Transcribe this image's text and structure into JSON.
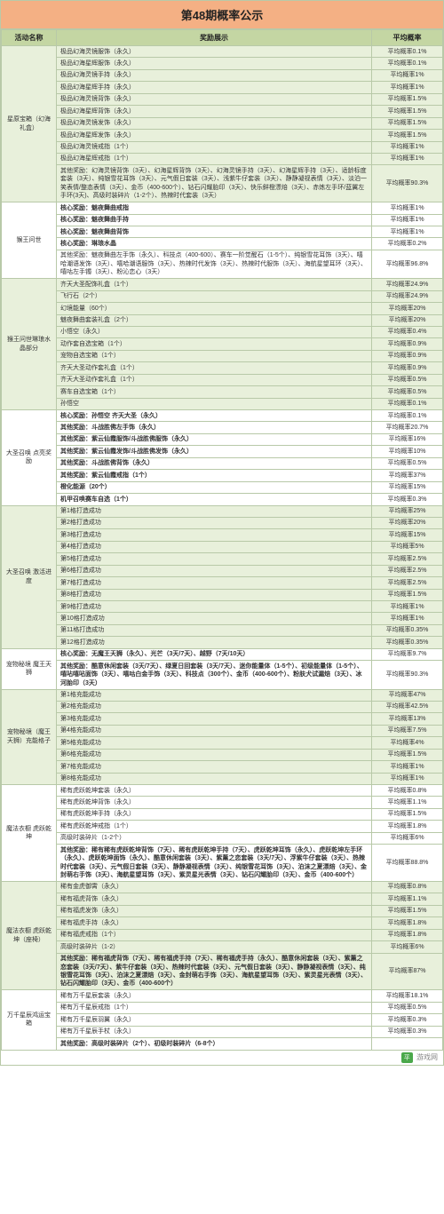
{
  "title": "第48期概率公示",
  "headers": {
    "name": "活动名称",
    "reward": "奖励展示",
    "rate": "平均概率"
  },
  "footer_brand": "平",
  "footer_text": "游戏网",
  "groups": [
    {
      "name": "星原宝箱（幻海礼盒）",
      "rows": [
        {
          "reward": "极品幻海灵镜服饰（永久）",
          "rate": "平均概率0.1%"
        },
        {
          "reward": "极品幻海星辉服饰（永久）",
          "rate": "平均概率0.1%"
        },
        {
          "reward": "极品幻海灵镜手持（永久）",
          "rate": "平均概率1%"
        },
        {
          "reward": "极品幻海星辉手持（永久）",
          "rate": "平均概率1%"
        },
        {
          "reward": "极品幻海灵镜背饰（永久）",
          "rate": "平均概率1.5%"
        },
        {
          "reward": "极品幻海星辉背饰（永久）",
          "rate": "平均概率1.5%"
        },
        {
          "reward": "极品幻海灵镜发饰（永久）",
          "rate": "平均概率1.5%"
        },
        {
          "reward": "极品幻海星辉发饰（永久）",
          "rate": "平均概率1.5%"
        },
        {
          "reward": "极品幻海灵镜戒指（1个）",
          "rate": "平均概率1%"
        },
        {
          "reward": "极品幻海星辉戒指（1个）",
          "rate": "平均概率1%"
        },
        {
          "reward": "其他奖励：幻海灵镜背饰（3天）、幻海星辉背饰（3天）、幻海灵镜手持（3天）、幻海星辉手持（3天）、适龄标度套装（3天）、纯银雪花耳饰（3天）、元气假日套装（3天）、浅紫牛仔套装（3天）、静静凝视表情（3天）、淡泊一笑表情/整态表情（3天）、金币（400-600个）、钻石闪耀胎印（3天）、快乐鲜橙漂焙（3天）、赤炼左手环/蓝翼左手环(3天)、高级时装碎片（1-2个）、热辣时代套装（3天）",
          "rate": "平均概率90.3%"
        }
      ]
    },
    {
      "name": "猴王问世",
      "rows": [
        {
          "reward": "核心奖励：魅夜舞曲戒指",
          "rate": "平均概率1%",
          "bold": true
        },
        {
          "reward": "核心奖励：魅夜舞曲手持",
          "rate": "平均概率1%",
          "bold": true
        },
        {
          "reward": "核心奖励：魅夜舞曲背饰",
          "rate": "平均概率1%",
          "bold": true
        },
        {
          "reward": "核心奖励：琳琅水晶",
          "rate": "平均概率0.2%",
          "bold": true
        },
        {
          "reward": "其他奖励：魅夜舞曲左手饰（永久）、科技点（400-600）、赛车一阶觉醒石（1-5个）、纯银雪花耳饰（3天）、嘻哈潮语发饰（3天）、嘻哈潮语服饰（3天）、热辣时代发饰（3天）、热辣时代服饰（3天）、海航星望耳环（3天）、嘻咕左手镯（3天）、粉沁恋心（3天）",
          "rate": "平均概率96.8%"
        }
      ]
    },
    {
      "name": "猴王问世琳琅水晶部分",
      "rows": [
        {
          "reward": "齐天大圣配饰礼盒（1个）",
          "rate": "平均概率24.9%"
        },
        {
          "reward": "飞行石（2个）",
          "rate": "平均概率24.9%"
        },
        {
          "reward": "幻境能量（60个）",
          "rate": "平均概率20%"
        },
        {
          "reward": "魅夜舞曲套装礼盒（2个）",
          "rate": "平均概率20%"
        },
        {
          "reward": "小悟空（永久）",
          "rate": "平均概率0.4%"
        },
        {
          "reward": "动作套自选宝箱（1个）",
          "rate": "平均概率0.9%"
        },
        {
          "reward": "宠物自选宝箱（1个）",
          "rate": "平均概率0.9%"
        },
        {
          "reward": "齐天大圣动作套礼盒（1个）",
          "rate": "平均概率0.9%"
        },
        {
          "reward": "齐天大圣动作套礼盒（1个）",
          "rate": "平均概率0.5%"
        },
        {
          "reward": "赛车自选宝箱（1个）",
          "rate": "平均概率0.5%"
        },
        {
          "reward": "孙悟空",
          "rate": "平均概率0.1%"
        }
      ]
    },
    {
      "name": "大圣召唤 点亮奖励",
      "rows": [
        {
          "reward": "核心奖励：孙悟空 齐天大圣（永久）",
          "rate": "平均概率0.1%",
          "bold": true
        },
        {
          "reward": "其他奖励：斗战胜佛左手饰（永久）",
          "rate": "平均概率20.7%",
          "bold": true
        },
        {
          "reward": "其他奖励：紫云仙霞服饰/斗战胜佛服饰（永久）",
          "rate": "平均概率16%",
          "bold": true
        },
        {
          "reward": "其他奖励：紫云仙霞发饰/斗战胜佛发饰（永久）",
          "rate": "平均概率10%",
          "bold": true
        },
        {
          "reward": "其他奖励：斗战胜佛背饰（永久）",
          "rate": "平均概率0.5%",
          "bold": true
        },
        {
          "reward": "其他奖励：紫云仙霞戒指（1个）",
          "rate": "平均概率37%",
          "bold": true
        },
        {
          "reward": "橙化能源（20个）",
          "rate": "平均概率15%",
          "bold": true
        },
        {
          "reward": "机甲召唤赛车自选（1个）",
          "rate": "平均概率0.3%",
          "bold": true
        }
      ]
    },
    {
      "name": "大圣召唤 激活进度",
      "rows": [
        {
          "reward": "第1格打造成功",
          "rate": "平均概率25%"
        },
        {
          "reward": "第2格打造成功",
          "rate": "平均概率20%"
        },
        {
          "reward": "第3格打造成功",
          "rate": "平均概率15%"
        },
        {
          "reward": "第4格打造成功",
          "rate": "平均概率5%"
        },
        {
          "reward": "第5格打造成功",
          "rate": "平均概率2.5%"
        },
        {
          "reward": "第6格打造成功",
          "rate": "平均概率2.5%"
        },
        {
          "reward": "第7格打造成功",
          "rate": "平均概率2.5%"
        },
        {
          "reward": "第8格打造成功",
          "rate": "平均概率1.5%"
        },
        {
          "reward": "第9格打造成功",
          "rate": "平均概率1%"
        },
        {
          "reward": "第10格打造成功",
          "rate": "平均概率1%"
        },
        {
          "reward": "第11格打造成功",
          "rate": "平均概率0.35%"
        },
        {
          "reward": "第12格打造成功",
          "rate": "平均概率0.35%"
        }
      ]
    },
    {
      "name": "宠物秘境 魔王天狮",
      "rows": [
        {
          "reward": "核心奖励：无魔王天狮（永久）、光芒（3天/7天）、越野（7天/10天）",
          "rate": "平均概率9.7%",
          "bold": true
        },
        {
          "reward": "其他奖励：酷意休闲套装（3天/7天）、绿夏日回套装（3天/7天）、迷你能量体（1-5个）、初级能量体（1-5个）、嘻呫嘻呫面饰（3天）、嘻咕白金手饰（3天）、科技点（300个）、金币（400-600个）、粉肤犬试漏焙（3天）、冰河胎印（3天）",
          "rate": "平均概率90.3%",
          "bold": true
        }
      ]
    },
    {
      "name": "宠物秘境（魔王天狮）充能格子",
      "rows": [
        {
          "reward": "第1格充能成功",
          "rate": "平均概率47%"
        },
        {
          "reward": "第2格充能成功",
          "rate": "平均概率42.5%"
        },
        {
          "reward": "第3格充能成功",
          "rate": "平均概率13%"
        },
        {
          "reward": "第4格充能成功",
          "rate": "平均概率7.5%"
        },
        {
          "reward": "第5格充能成功",
          "rate": "平均概率4%"
        },
        {
          "reward": "第6格充能成功",
          "rate": "平均概率1.5%"
        },
        {
          "reward": "第7格充能成功",
          "rate": "平均概率1%"
        },
        {
          "reward": "第8格充能成功",
          "rate": "平均概率1%"
        }
      ]
    },
    {
      "name": "魔法衣橱 虎跃乾坤",
      "rows": [
        {
          "reward": "稀有虎跃乾坤套装（永久）",
          "rate": "平均概率0.8%"
        },
        {
          "reward": "稀有虎跃乾坤背饰（永久）",
          "rate": "平均概率1.1%"
        },
        {
          "reward": "稀有虎跃乾坤手持（永久）",
          "rate": "平均概率1.5%"
        },
        {
          "reward": "稀有虎跃乾坤戒指（1个）",
          "rate": "平均概率1.8%"
        },
        {
          "reward": "高级时装碎片（1-2个）",
          "rate": "平均概率6%"
        },
        {
          "reward": "其他奖励：稀有稀有虎跃乾坤背饰（7天）、稀有虎跃乾坤手持（7天）、虎跃乾坤耳饰（永久）、虎跃乾坤左手环（永久）、虎跃乾坤面饰（永久）、酷意休闲套装（3天）、紫薰之恋套装（3天/7天）、浮紫牛仔套装（3天）、热辣时代套装（3天）、元气假日套装（3天）、静静凝视表情（3天）、纯银雪花耳饰（3天）、泊沫之夏漂焙（3天）、金封萌右手饰（3天）、海航星望耳饰（3天）、紫灵星光表情（3天）、钻石闪耀胎印（3天）、金币（400-600个）",
          "rate": "平均概率88.8%",
          "bold": true
        }
      ]
    },
    {
      "name": "魔法衣橱 虎跃乾坤（座椅）",
      "rows": [
        {
          "reward": "稀有金虎御霄（永久）",
          "rate": "平均概率0.8%"
        },
        {
          "reward": "稀有福虎背饰（永久）",
          "rate": "平均概率1.1%"
        },
        {
          "reward": "稀有福虎发饰（永久）",
          "rate": "平均概率1.5%"
        },
        {
          "reward": "稀有福虎手持（永久）",
          "rate": "平均概率1.8%"
        },
        {
          "reward": "稀有福虎戒指（1个）",
          "rate": "平均概率1.8%"
        },
        {
          "reward": "高级时装碎片（1-2）",
          "rate": "平均概率6%"
        },
        {
          "reward": "其他奖励：稀有福虎背饰（7天）、稀有福虎手持（7天）、稀有福虎手持（永久）、酷意休闲套装（3天）、紫薰之恋套装（3天/7天）、紫牛仔套装（3天）、热辣时代套装（3天）、元气假日套装（3天）、静静凝视表情（3天）、纯银雪花耳饰（3天）、泊沫之夏漂焙（3天）、金封萌右手饰（3天）、海航星望耳饰（3天）、紫灵星光表情（3天）、钻石闪耀胎印（3天）、金币（400-600个）",
          "rate": "平均概率87%",
          "bold": true
        }
      ]
    },
    {
      "name": "万千星辰鸿运宝箱",
      "rows": [
        {
          "reward": "稀有万千星辰套装（永久）",
          "rate": "平均概率18.1%"
        },
        {
          "reward": "稀有万千星辰戒指（1个）",
          "rate": "平均概率0.5%"
        },
        {
          "reward": "稀有万千星辰羽翼（永久）",
          "rate": "平均概率0.3%"
        },
        {
          "reward": "稀有万千星辰手杖（永久）",
          "rate": "平均概率0.3%"
        },
        {
          "reward": "其他奖励：高级时装碎片（2个）、初级时装碎片（6-8个）",
          "rate": "",
          "bold": true
        }
      ]
    }
  ]
}
